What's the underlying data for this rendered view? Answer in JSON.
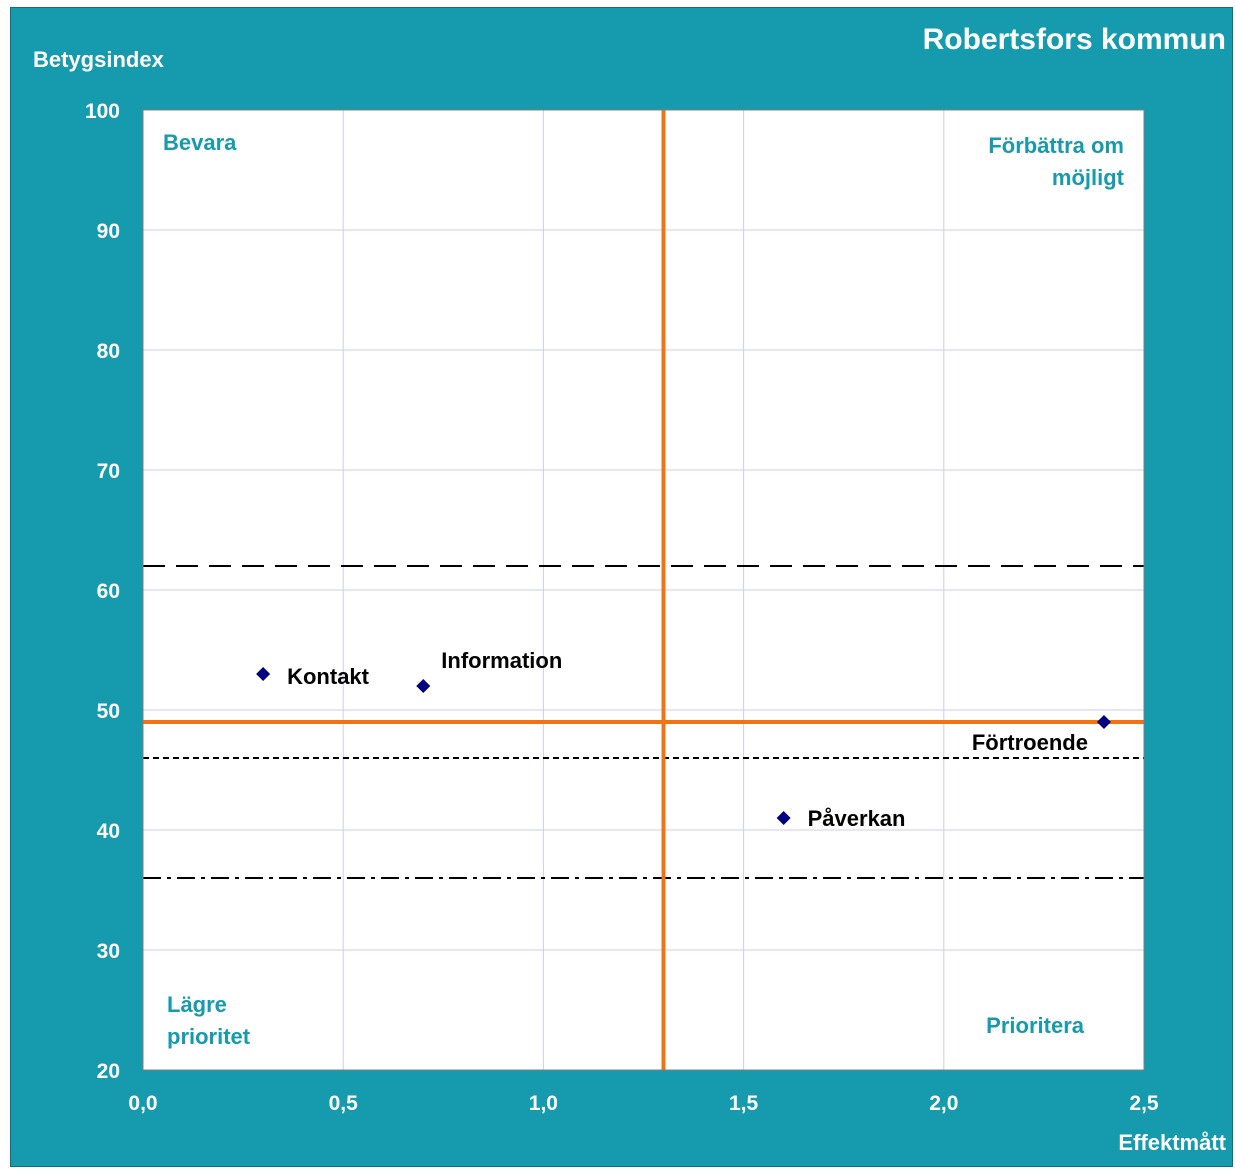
{
  "chart_data": {
    "type": "scatter",
    "title": "Robertsfors kommun",
    "ylabel": "Betygsindex",
    "xlabel": "Effektmått",
    "xlim": [
      0,
      2.5
    ],
    "ylim": [
      20,
      100
    ],
    "x_ticks": [
      "0,0",
      "0,5",
      "1,0",
      "1,5",
      "2,0",
      "2,5"
    ],
    "y_ticks": [
      "20",
      "30",
      "40",
      "50",
      "60",
      "70",
      "80",
      "90",
      "100"
    ],
    "grid": true,
    "points": [
      {
        "label": "Kontakt",
        "x": 0.3,
        "y": 53
      },
      {
        "label": "Information",
        "x": 0.7,
        "y": 52
      },
      {
        "label": "Förtroende",
        "x": 2.4,
        "y": 49
      },
      {
        "label": "Påverkan",
        "x": 1.6,
        "y": 41
      }
    ],
    "quadrants": {
      "top_left": [
        "Bevara"
      ],
      "top_right": [
        "Förbättra om",
        "möjligt"
      ],
      "bottom_left": [
        "Lägre",
        "prioritet"
      ],
      "bottom_right": [
        "Prioritera"
      ]
    },
    "divider_x": 1.3,
    "divider_y": 49,
    "reference_lines": [
      {
        "y": 62,
        "style": "long-dash"
      },
      {
        "y": 46,
        "style": "short-dash"
      },
      {
        "y": 36,
        "style": "dash-dot"
      }
    ],
    "colors": {
      "background": "#159aae",
      "plot": "#ffffff",
      "grid": "#ccccee",
      "divider": "#f47216",
      "marker": "#000080",
      "quadrant_text": "#159aae"
    }
  }
}
